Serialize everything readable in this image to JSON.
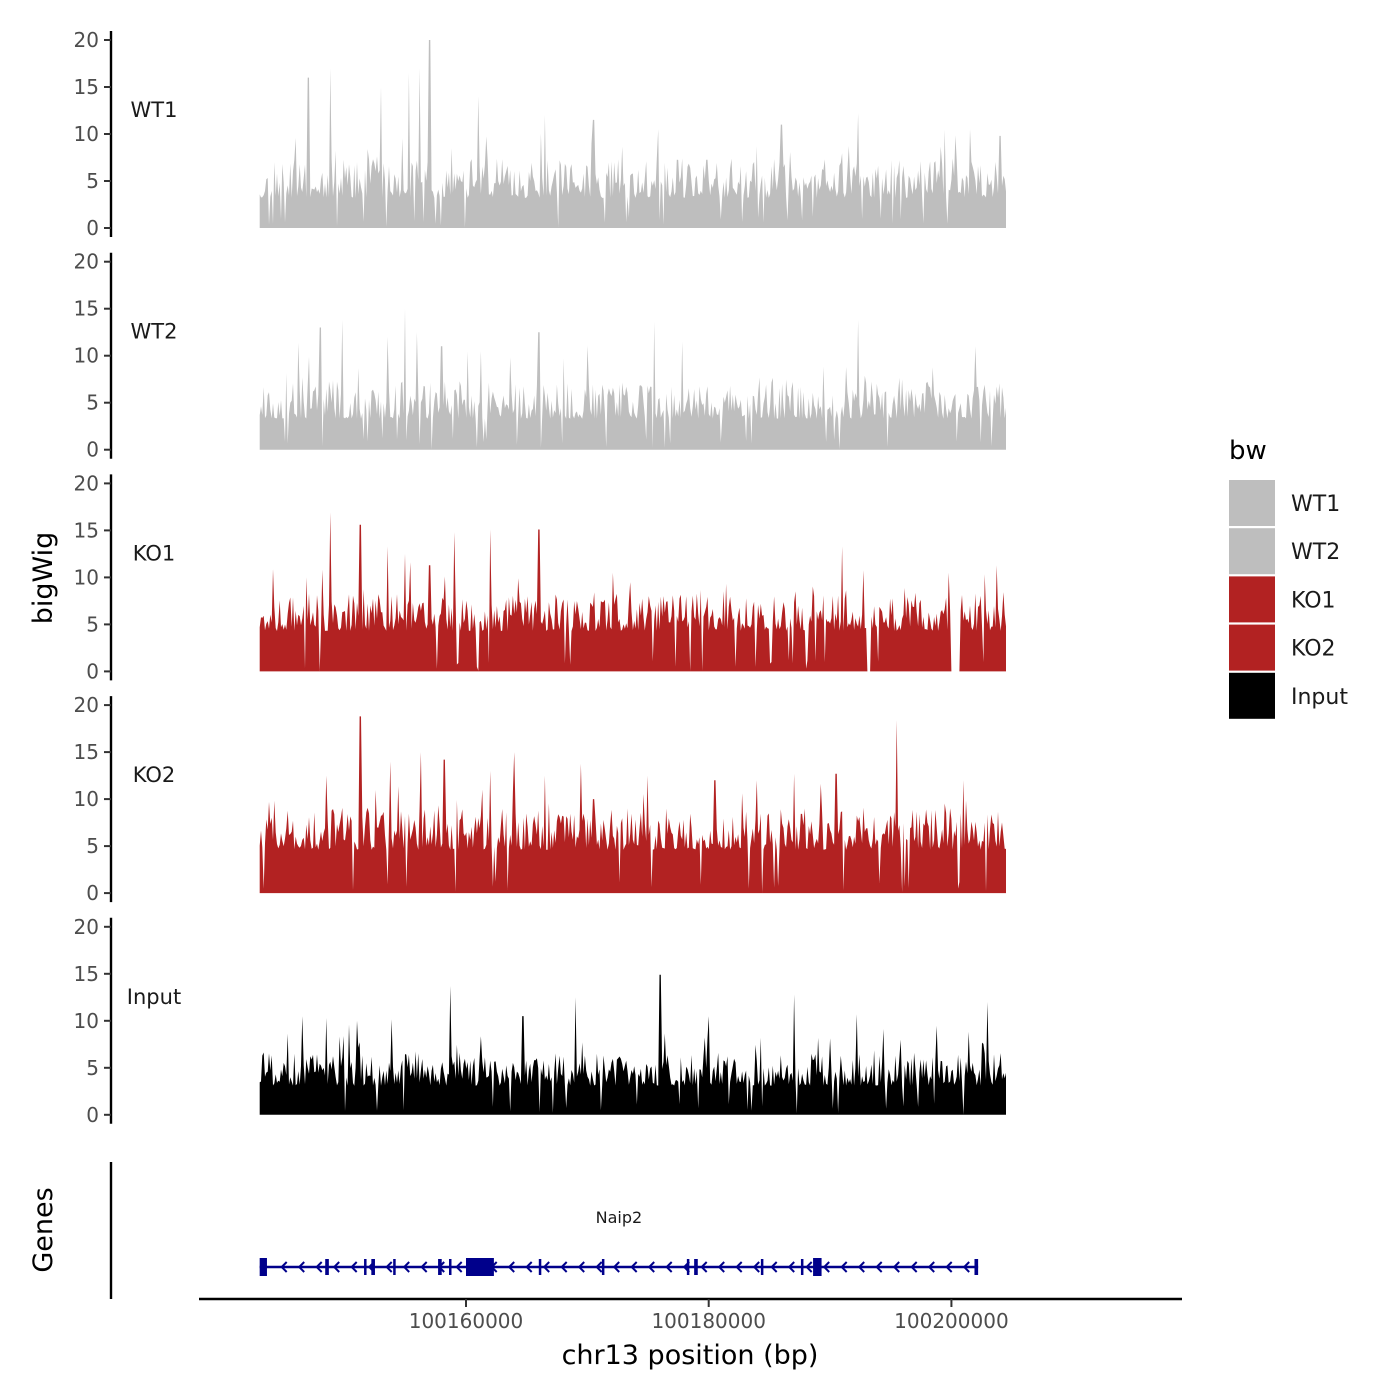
{
  "chart_data": {
    "type": "area",
    "title": "",
    "xlabel": "chr13 position (bp)",
    "ylabel": "bigWig",
    "genes_label": "Genes",
    "chromosome": "chr13",
    "xlim": [
      100138000,
      100219000
    ],
    "x_data_range": [
      100143000,
      100204500
    ],
    "x_ticks": [
      100160000,
      100180000,
      100200000
    ],
    "x_tick_labels": [
      "100160000",
      "100180000",
      "100200000"
    ],
    "ylim": [
      0,
      20
    ],
    "y_ticks": [
      0,
      5,
      10,
      15,
      20
    ],
    "y_tick_labels": [
      "0",
      "5",
      "10",
      "15",
      "20"
    ],
    "series": [
      {
        "name": "WT1",
        "color": "#bebebe",
        "baseline": 3.2,
        "amplitude": 4.2,
        "seed": 11,
        "peaks": [
          [
            100147000,
            16
          ],
          [
            100148800,
            17
          ],
          [
            100153000,
            15
          ],
          [
            100155300,
            16.5
          ],
          [
            100156200,
            17
          ],
          [
            100157000,
            20
          ],
          [
            100158800,
            8.5
          ],
          [
            100161000,
            14
          ],
          [
            100166500,
            12
          ],
          [
            100170500,
            11.5
          ],
          [
            100175800,
            10.5
          ],
          [
            100186000,
            11
          ],
          [
            100192300,
            12.2
          ],
          [
            100201500,
            10.5
          ],
          [
            100204000,
            9.8
          ]
        ]
      },
      {
        "name": "WT2",
        "color": "#bebebe",
        "baseline": 3.3,
        "amplitude": 4.0,
        "seed": 23,
        "peaks": [
          [
            100148000,
            13
          ],
          [
            100149800,
            13.8
          ],
          [
            100153500,
            12
          ],
          [
            100155000,
            15
          ],
          [
            100156000,
            12.5
          ],
          [
            100158000,
            11
          ],
          [
            100161200,
            10.5
          ],
          [
            100166000,
            12.5
          ],
          [
            100175500,
            13.6
          ],
          [
            100177800,
            11.5
          ],
          [
            100192300,
            13.8
          ],
          [
            100202000,
            11
          ]
        ]
      },
      {
        "name": "KO1",
        "color": "#b22222",
        "baseline": 4.3,
        "amplitude": 4.0,
        "seed": 37,
        "peaks": [
          [
            100146800,
            10
          ],
          [
            100148800,
            16.9
          ],
          [
            100151300,
            15.6
          ],
          [
            100153500,
            13.3
          ],
          [
            100155000,
            12.5
          ],
          [
            100157000,
            11.3
          ],
          [
            100159000,
            14.8
          ],
          [
            100162000,
            15.1
          ],
          [
            100166000,
            15.1
          ],
          [
            100173500,
            9.5
          ],
          [
            100191000,
            13.3
          ],
          [
            100199800,
            10.5
          ]
        ],
        "gaps": [
          [
            100193000,
            100193300
          ],
          [
            100199900,
            100200700
          ]
        ]
      },
      {
        "name": "KO2",
        "color": "#b22222",
        "baseline": 4.6,
        "amplitude": 4.5,
        "seed": 53,
        "peaks": [
          [
            100148500,
            12.5
          ],
          [
            100151300,
            18.8
          ],
          [
            100153800,
            14
          ],
          [
            100156300,
            15
          ],
          [
            100158200,
            14.2
          ],
          [
            100162000,
            13
          ],
          [
            100164000,
            15
          ],
          [
            100166500,
            12.5
          ],
          [
            100170500,
            10
          ],
          [
            100175000,
            12.5
          ],
          [
            100180500,
            12
          ],
          [
            100184000,
            12
          ],
          [
            100187000,
            12.7
          ],
          [
            100190500,
            12.7
          ],
          [
            100195500,
            18.4
          ],
          [
            100201000,
            12
          ]
        ]
      },
      {
        "name": "Input",
        "color": "#000000",
        "baseline": 3.1,
        "amplitude": 3.5,
        "seed": 71,
        "peaks": [
          [
            100146500,
            10.5
          ],
          [
            100148500,
            10.3
          ],
          [
            100151000,
            10
          ],
          [
            100158700,
            13.7
          ],
          [
            100164700,
            10.5
          ],
          [
            100169000,
            12.5
          ],
          [
            100176000,
            14.9
          ],
          [
            100180000,
            10.5
          ],
          [
            100187000,
            12.8
          ],
          [
            100192200,
            10.7
          ],
          [
            100195800,
            8
          ],
          [
            100203000,
            12
          ]
        ],
        "dips": [
          [
            100201000,
            0
          ]
        ]
      }
    ],
    "legend": {
      "title": "bw",
      "position": "right",
      "entries": [
        {
          "label": "WT1",
          "color": "#bebebe"
        },
        {
          "label": "WT2",
          "color": "#bebebe"
        },
        {
          "label": "KO1",
          "color": "#b22222"
        },
        {
          "label": "KO2",
          "color": "#b22222"
        },
        {
          "label": "Input",
          "color": "#000000"
        }
      ]
    },
    "gene": {
      "name": "Naip2",
      "color": "#00008b",
      "strand": "-",
      "start": 100143000,
      "end": 100202200,
      "exons": [
        [
          100143000,
          100143600
        ],
        [
          100148400,
          100148700
        ],
        [
          100151600,
          100151800
        ],
        [
          100152200,
          100152500
        ],
        [
          100154000,
          100154200
        ],
        [
          100157700,
          100158000
        ],
        [
          100158600,
          100158800
        ],
        [
          100160000,
          100162300
        ],
        [
          100166000,
          100166200
        ],
        [
          100171200,
          100171400
        ],
        [
          100178200,
          100178400
        ],
        [
          100178800,
          100179100
        ],
        [
          100184300,
          100184500
        ],
        [
          100187600,
          100187800
        ],
        [
          100188600,
          100189300
        ],
        [
          100201900,
          100202200
        ]
      ]
    }
  }
}
